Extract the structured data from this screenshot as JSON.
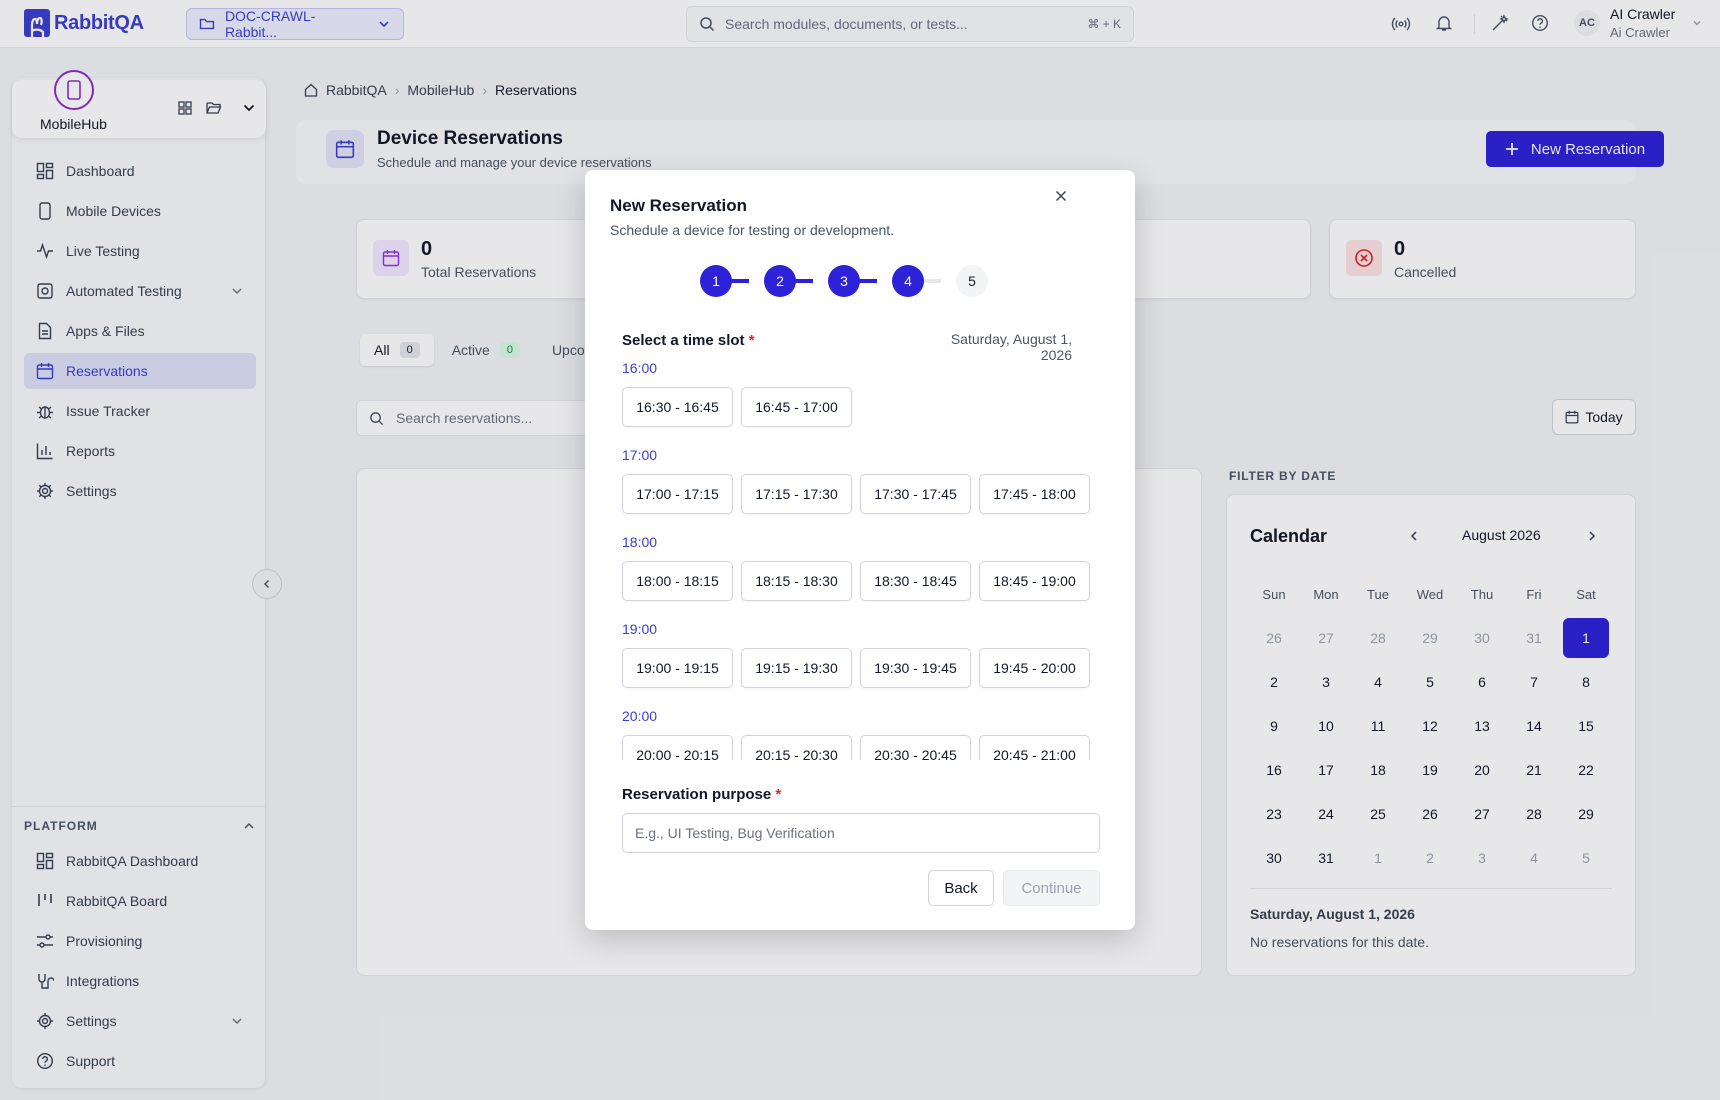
{
  "topbar": {
    "brand": "RabbitQA",
    "project": "DOC-CRAWL-Rabbit...",
    "search_placeholder": "Search modules, documents, or tests...",
    "search_shortcut": "⌘ + K",
    "user_initials": "AC",
    "user_name": "AI Crawler",
    "user_role": "Ai Crawler"
  },
  "sidebar": {
    "module_name": "MobileHub",
    "items": [
      {
        "label": "Dashboard"
      },
      {
        "label": "Mobile Devices"
      },
      {
        "label": "Live Testing"
      },
      {
        "label": "Automated Testing"
      },
      {
        "label": "Apps & Files"
      },
      {
        "label": "Reservations"
      },
      {
        "label": "Issue Tracker"
      },
      {
        "label": "Reports"
      },
      {
        "label": "Settings"
      }
    ],
    "platform_title": "PLATFORM",
    "platform_items": [
      {
        "label": "RabbitQA Dashboard"
      },
      {
        "label": "RabbitQA Board"
      },
      {
        "label": "Provisioning"
      },
      {
        "label": "Integrations"
      },
      {
        "label": "Settings"
      },
      {
        "label": "Support"
      }
    ]
  },
  "breadcrumb": {
    "items": [
      "RabbitQA",
      "MobileHub",
      "Reservations"
    ]
  },
  "header": {
    "title": "Device Reservations",
    "subtitle": "Schedule and manage your device reservations",
    "new_button": "New Reservation"
  },
  "stats": [
    {
      "value": "0",
      "label": "Total Reservations"
    },
    {
      "value": "0",
      "label": "Cancelled"
    }
  ],
  "tabs": [
    {
      "label": "All",
      "count": "0"
    },
    {
      "label": "Active",
      "count": "0"
    },
    {
      "label": "Upcoming"
    }
  ],
  "list_search_placeholder": "Search reservations...",
  "today_button": "Today",
  "calendar": {
    "filter_label": "FILTER BY DATE",
    "title": "Calendar",
    "month": "August 2026",
    "weekdays": [
      "Sun",
      "Mon",
      "Tue",
      "Wed",
      "Thu",
      "Fri",
      "Sat"
    ],
    "days": [
      {
        "d": "26",
        "m": true
      },
      {
        "d": "27",
        "m": true
      },
      {
        "d": "28",
        "m": true
      },
      {
        "d": "29",
        "m": true
      },
      {
        "d": "30",
        "m": true
      },
      {
        "d": "31",
        "m": true
      },
      {
        "d": "1",
        "sel": true
      },
      {
        "d": "2"
      },
      {
        "d": "3"
      },
      {
        "d": "4"
      },
      {
        "d": "5"
      },
      {
        "d": "6"
      },
      {
        "d": "7"
      },
      {
        "d": "8"
      },
      {
        "d": "9"
      },
      {
        "d": "10"
      },
      {
        "d": "11"
      },
      {
        "d": "12"
      },
      {
        "d": "13"
      },
      {
        "d": "14"
      },
      {
        "d": "15"
      },
      {
        "d": "16"
      },
      {
        "d": "17"
      },
      {
        "d": "18"
      },
      {
        "d": "19"
      },
      {
        "d": "20"
      },
      {
        "d": "21"
      },
      {
        "d": "22"
      },
      {
        "d": "23"
      },
      {
        "d": "24"
      },
      {
        "d": "25"
      },
      {
        "d": "26"
      },
      {
        "d": "27"
      },
      {
        "d": "28"
      },
      {
        "d": "29"
      },
      {
        "d": "30"
      },
      {
        "d": "31"
      },
      {
        "d": "1",
        "m": true
      },
      {
        "d": "2",
        "m": true
      },
      {
        "d": "3",
        "m": true
      },
      {
        "d": "4",
        "m": true
      },
      {
        "d": "5",
        "m": true
      }
    ],
    "selected_date": "Saturday, August 1, 2026",
    "empty_text": "No reservations for this date."
  },
  "modal": {
    "title": "New Reservation",
    "subtitle": "Schedule a device for testing or development.",
    "steps": [
      "1",
      "2",
      "3",
      "4",
      "5"
    ],
    "current_step": 4,
    "slot_label": "Select a time slot",
    "required_mark": "*",
    "slot_date": "Saturday, August 1, 2026",
    "hours": [
      {
        "hour": "16:00",
        "slots": [
          "16:30 - 16:45",
          "16:45 - 17:00"
        ]
      },
      {
        "hour": "17:00",
        "slots": [
          "17:00 - 17:15",
          "17:15 - 17:30",
          "17:30 - 17:45",
          "17:45 - 18:00"
        ]
      },
      {
        "hour": "18:00",
        "slots": [
          "18:00 - 18:15",
          "18:15 - 18:30",
          "18:30 - 18:45",
          "18:45 - 19:00"
        ]
      },
      {
        "hour": "19:00",
        "slots": [
          "19:00 - 19:15",
          "19:15 - 19:30",
          "19:30 - 19:45",
          "19:45 - 20:00"
        ]
      },
      {
        "hour": "20:00",
        "slots": [
          "20:00 - 20:15",
          "20:15 - 20:30",
          "20:30 - 20:45",
          "20:45 - 21:00"
        ]
      }
    ],
    "purpose_label": "Reservation purpose",
    "purpose_placeholder": "E.g., UI Testing, Bug Verification",
    "purpose_value": "",
    "back_button": "Back",
    "continue_button": "Continue"
  },
  "colors": {
    "accent": "#2d22d8",
    "brand": "#3b3fd1",
    "module": "#8b2fc9",
    "cancel": "#dc2626"
  }
}
